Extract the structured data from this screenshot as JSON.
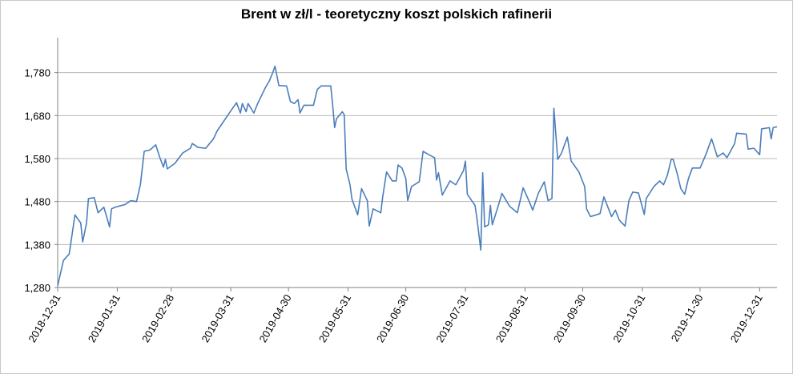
{
  "chart_data": {
    "type": "line",
    "title": "Brent w zł/l - teoretyczny koszt polskich rafinerii",
    "x": [
      "2018-12-31",
      "2019-01-03",
      "2019-01-06",
      "2019-01-09",
      "2019-01-12",
      "2019-01-13",
      "2019-01-15",
      "2019-01-16",
      "2019-01-19",
      "2019-01-21",
      "2019-01-24",
      "2019-01-27",
      "2019-01-28",
      "2019-01-30",
      "2019-02-04",
      "2019-02-07",
      "2019-02-10",
      "2019-02-12",
      "2019-02-14",
      "2019-02-17",
      "2019-02-20",
      "2019-02-22",
      "2019-02-24",
      "2019-02-25",
      "2019-02-26",
      "2019-03-02",
      "2019-03-06",
      "2019-03-10",
      "2019-03-11",
      "2019-03-14",
      "2019-03-18",
      "2019-03-22",
      "2019-03-24",
      "2019-03-26",
      "2019-03-31",
      "2019-04-03",
      "2019-04-05",
      "2019-04-06",
      "2019-04-08",
      "2019-04-09",
      "2019-04-12",
      "2019-04-14",
      "2019-04-18",
      "2019-04-20",
      "2019-04-22",
      "2019-04-23",
      "2019-04-25",
      "2019-04-29",
      "2019-05-01",
      "2019-05-03",
      "2019-05-05",
      "2019-05-06",
      "2019-05-08",
      "2019-05-13",
      "2019-05-15",
      "2019-05-17",
      "2019-05-22",
      "2019-05-23",
      "2019-05-24",
      "2019-05-25",
      "2019-05-28",
      "2019-05-29",
      "2019-05-30",
      "2019-06-01",
      "2019-06-02",
      "2019-06-05",
      "2019-06-07",
      "2019-06-10",
      "2019-06-11",
      "2019-06-13",
      "2019-06-17",
      "2019-06-18",
      "2019-06-20",
      "2019-06-23",
      "2019-06-25",
      "2019-06-26",
      "2019-06-28",
      "2019-06-30",
      "2019-07-01",
      "2019-07-03",
      "2019-07-07",
      "2019-07-09",
      "2019-07-12",
      "2019-07-15",
      "2019-07-16",
      "2019-07-17",
      "2019-07-19",
      "2019-07-23",
      "2019-07-26",
      "2019-07-30",
      "2019-07-31",
      "2019-08-01",
      "2019-08-05",
      "2019-08-06",
      "2019-08-08",
      "2019-08-09",
      "2019-08-10",
      "2019-08-12",
      "2019-08-13",
      "2019-08-14",
      "2019-08-17",
      "2019-08-19",
      "2019-08-23",
      "2019-08-27",
      "2019-08-30",
      "2019-09-02",
      "2019-09-04",
      "2019-09-07",
      "2019-09-10",
      "2019-09-12",
      "2019-09-14",
      "2019-09-15",
      "2019-09-17",
      "2019-09-19",
      "2019-09-22",
      "2019-09-24",
      "2019-09-28",
      "2019-10-01",
      "2019-10-02",
      "2019-10-04",
      "2019-10-07",
      "2019-10-09",
      "2019-10-11",
      "2019-10-15",
      "2019-10-17",
      "2019-10-19",
      "2019-10-22",
      "2019-10-24",
      "2019-10-26",
      "2019-10-29",
      "2019-11-01",
      "2019-11-02",
      "2019-11-06",
      "2019-11-09",
      "2019-11-11",
      "2019-11-13",
      "2019-11-15",
      "2019-11-16",
      "2019-11-18",
      "2019-11-20",
      "2019-11-22",
      "2019-11-24",
      "2019-11-26",
      "2019-11-30",
      "2019-12-03",
      "2019-12-06",
      "2019-12-09",
      "2019-12-12",
      "2019-12-14",
      "2019-12-18",
      "2019-12-19",
      "2019-12-24",
      "2019-12-25",
      "2019-12-28",
      "2019-12-31",
      "2020-01-01",
      "2020-01-05",
      "2020-01-06",
      "2020-01-07",
      "2020-01-09"
    ],
    "series": [
      {
        "color": "#4a7ebb",
        "values": [
          1284,
          1343,
          1358,
          1449,
          1430,
          1386,
          1430,
          1487,
          1489,
          1454,
          1467,
          1421,
          1463,
          1467,
          1473,
          1482,
          1480,
          1519,
          1597,
          1600,
          1612,
          1584,
          1560,
          1578,
          1556,
          1569,
          1593,
          1604,
          1615,
          1606,
          1604,
          1626,
          1645,
          1658,
          1691,
          1710,
          1686,
          1708,
          1689,
          1708,
          1686,
          1708,
          1745,
          1760,
          1782,
          1795,
          1750,
          1749,
          1713,
          1708,
          1717,
          1686,
          1704,
          1704,
          1741,
          1749,
          1749,
          1704,
          1652,
          1673,
          1689,
          1682,
          1556,
          1519,
          1486,
          1449,
          1510,
          1482,
          1423,
          1463,
          1454,
          1491,
          1549,
          1528,
          1528,
          1565,
          1558,
          1534,
          1482,
          1515,
          1526,
          1597,
          1589,
          1582,
          1530,
          1547,
          1495,
          1528,
          1519,
          1552,
          1574,
          1497,
          1471,
          1441,
          1367,
          1547,
          1421,
          1426,
          1471,
          1426,
          1469,
          1499,
          1469,
          1454,
          1512,
          1482,
          1460,
          1500,
          1526,
          1482,
          1487,
          1697,
          1578,
          1593,
          1630,
          1574,
          1549,
          1515,
          1463,
          1445,
          1449,
          1452,
          1491,
          1445,
          1460,
          1437,
          1423,
          1482,
          1502,
          1500,
          1450,
          1487,
          1515,
          1528,
          1519,
          1541,
          1578,
          1578,
          1547,
          1510,
          1497,
          1534,
          1558,
          1558,
          1589,
          1626,
          1584,
          1593,
          1582,
          1615,
          1639,
          1637,
          1602,
          1604,
          1589,
          1649,
          1652,
          1626,
          1652,
          1654
        ]
      }
    ],
    "xlim": [
      "2018-12-31",
      "2020-01-09"
    ],
    "xticks": [
      "2018-12-31",
      "2019-01-31",
      "2019-02-28",
      "2019-03-31",
      "2019-04-30",
      "2019-05-31",
      "2019-06-30",
      "2019-07-31",
      "2019-08-31",
      "2019-09-30",
      "2019-10-31",
      "2019-11-30",
      "2019-12-31"
    ],
    "ylim": [
      1280,
      1880
    ],
    "yticks": [
      {
        "value": 1280,
        "label": "1,280"
      },
      {
        "value": 1380,
        "label": "1,380"
      },
      {
        "value": 1480,
        "label": "1,480"
      },
      {
        "value": 1580,
        "label": "1,580"
      },
      {
        "value": 1680,
        "label": "1,680"
      },
      {
        "value": 1780,
        "label": "1,780"
      }
    ],
    "grid": true
  }
}
